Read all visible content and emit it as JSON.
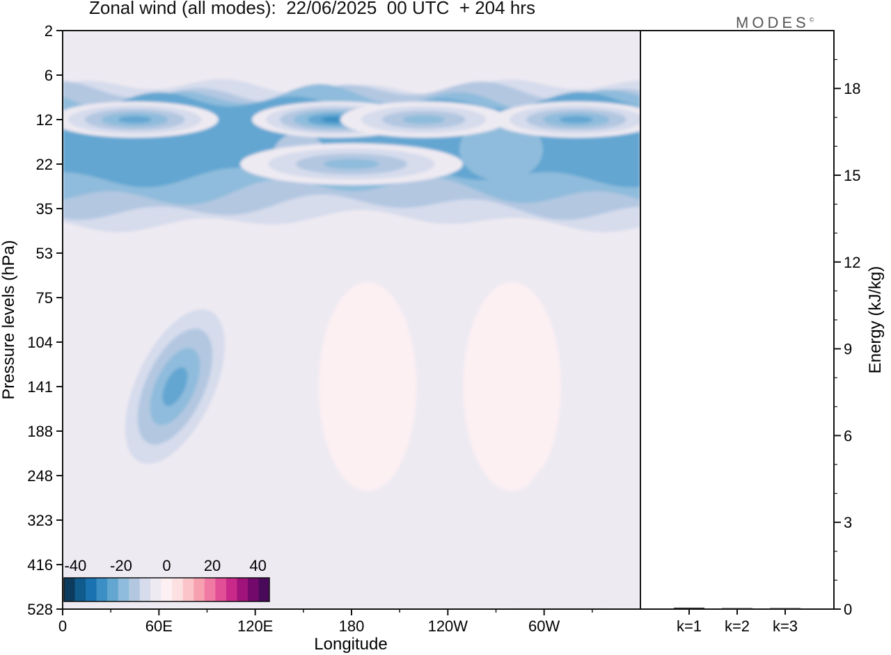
{
  "header": {
    "title": "Zonal wind (all modes):  22/06/2025  00 UTC  + 204 hrs",
    "brand": "MODES",
    "brand_mark": "©"
  },
  "chart_data": [
    {
      "type": "heatmap",
      "title": "Zonal wind (all modes):  22/06/2025  00 UTC  + 204 hrs",
      "xlabel": "Longitude",
      "ylabel": "Pressure levels (hPa)",
      "x_ticks": [
        "0",
        "60E",
        "120E",
        "180",
        "120W",
        "60W"
      ],
      "x_tick_degrees": [
        0,
        60,
        120,
        180,
        240,
        300
      ],
      "xlim": [
        0,
        360
      ],
      "y_ticks": [
        "2",
        "6",
        "12",
        "22",
        "35",
        "53",
        "75",
        "104",
        "141",
        "188",
        "248",
        "323",
        "416",
        "528"
      ],
      "colorbar": {
        "labels": [
          "-40",
          "-20",
          "0",
          "20",
          "40"
        ],
        "label_values": [
          -40,
          -20,
          0,
          20,
          40
        ],
        "range": [
          -45,
          45
        ],
        "step": 5,
        "colors": [
          "#0d3b5e",
          "#105a8c",
          "#1a73b0",
          "#3b8fc4",
          "#62a6d1",
          "#8fbcdc",
          "#b3c7e1",
          "#d6dcec",
          "#eeeaf2",
          "#fdf0f3",
          "#fde0e2",
          "#fbc4c9",
          "#f7a0b0",
          "#f07aa4",
          "#e24f97",
          "#c92a8a",
          "#a0137a",
          "#74096c",
          "#4a0a5a"
        ]
      },
      "features": [
        {
          "lon": 45,
          "level": "12",
          "value": -25
        },
        {
          "lon": 170,
          "level": "12",
          "value": -30
        },
        {
          "lon": 225,
          "level": "12",
          "value": -20
        },
        {
          "lon": 320,
          "level": "12",
          "value": -25
        },
        {
          "lon": 180,
          "level": "22",
          "value": -20
        },
        {
          "lon": 70,
          "level": "141",
          "value": -25
        },
        {
          "lon": 190,
          "level": "141",
          "value": 5
        },
        {
          "lon": 280,
          "level": "141",
          "value": 5
        },
        {
          "lon": 310,
          "level": "416",
          "value": -5
        }
      ]
    },
    {
      "type": "bar",
      "ylabel": "Energy (kJ/kg)",
      "categories": [
        "k=1",
        "k=2",
        "k=3"
      ],
      "values": [
        0.05,
        0.03,
        0.02
      ],
      "ylim": [
        0,
        20
      ],
      "y_ticks": [
        "0",
        "3",
        "6",
        "9",
        "12",
        "15",
        "18"
      ],
      "y_tick_values": [
        0,
        3,
        6,
        9,
        12,
        15,
        18
      ]
    }
  ]
}
